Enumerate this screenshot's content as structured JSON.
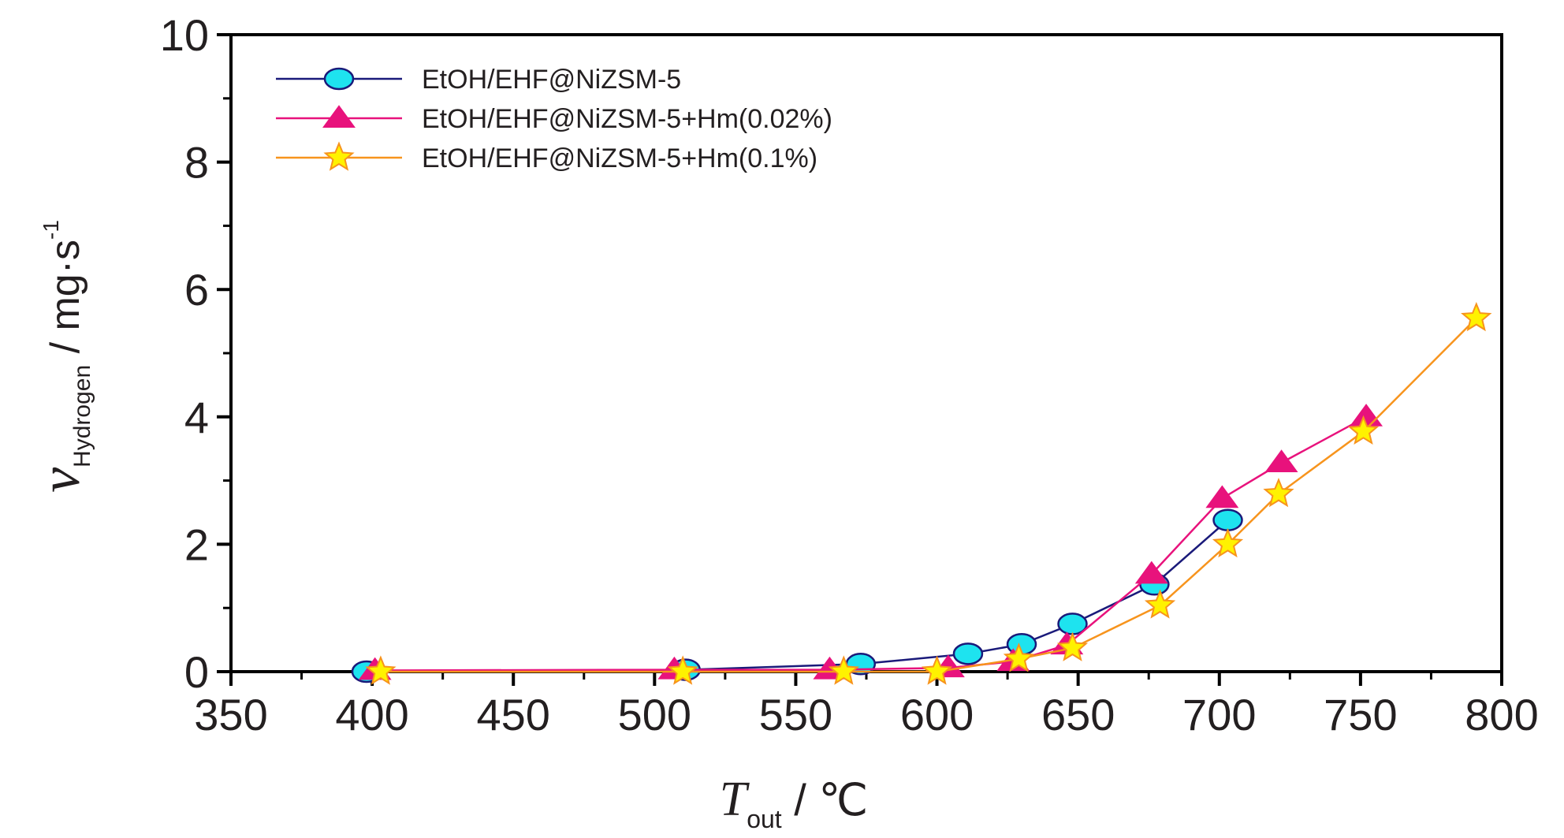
{
  "chart_data": {
    "type": "line",
    "xlabel": {
      "main": "T",
      "sub": "out",
      "rest": " / ℃"
    },
    "ylabel": {
      "main": "ν",
      "sub": "Hydrogen",
      "rest": " / mg·s",
      "sup": "-1"
    },
    "xlim": [
      350,
      800
    ],
    "ylim": [
      0,
      10
    ],
    "x_ticks": [
      "350",
      "400",
      "450",
      "500",
      "550",
      "600",
      "650",
      "700",
      "750",
      "800"
    ],
    "y_ticks": [
      "0",
      "2",
      "4",
      "6",
      "8",
      "10"
    ],
    "legend_position": "top-left",
    "grid": false,
    "series": [
      {
        "name": "EtOH/EHF@NiZSM-5",
        "marker": "circle",
        "line_color": "#1a1a7a",
        "marker_fill": "#1ee3ef",
        "marker_stroke": "#1a1a7a",
        "x": [
          398,
          511,
          573,
          611,
          630,
          648,
          677,
          703
        ],
        "y": [
          0.0,
          0.03,
          0.12,
          0.28,
          0.43,
          0.75,
          1.37,
          2.38
        ]
      },
      {
        "name": "EtOH/EHF@NiZSM-5+Hm(0.02%)",
        "marker": "triangle",
        "line_color": "#e8127c",
        "marker_fill": "#e8127c",
        "marker_stroke": "#e8127c",
        "x": [
          401,
          507,
          562,
          604,
          627,
          646,
          676,
          701,
          722,
          752
        ],
        "y": [
          0.02,
          0.03,
          0.03,
          0.06,
          0.16,
          0.42,
          1.53,
          2.72,
          3.28,
          4.0
        ]
      },
      {
        "name": "EtOH/EHF@NiZSM-5+Hm(0.1%)",
        "marker": "star",
        "line_color": "#f7941d",
        "marker_fill": "#fff200",
        "marker_stroke": "#f7941d",
        "x": [
          403,
          510,
          567,
          600,
          629,
          648,
          679,
          703,
          721,
          751,
          791
        ],
        "y": [
          0.0,
          0.0,
          0.0,
          0.0,
          0.2,
          0.37,
          1.04,
          2.0,
          2.79,
          3.77,
          5.55
        ]
      }
    ]
  }
}
